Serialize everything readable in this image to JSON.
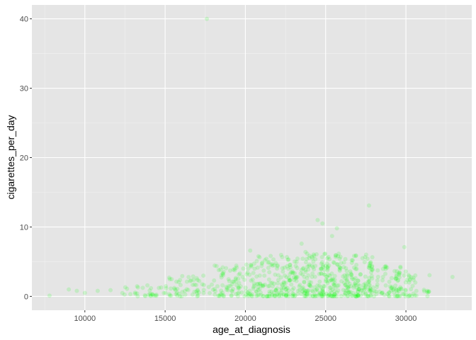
{
  "chart_data": {
    "type": "scatter",
    "xlabel": "age_at_diagnosis",
    "ylabel": "cigarettes_per_day",
    "xlim": [
      6700,
      34100
    ],
    "ylim": [
      -2,
      42
    ],
    "x_ticks": [
      10000,
      15000,
      20000,
      25000,
      30000
    ],
    "y_ticks": [
      0,
      10,
      20,
      30,
      40
    ],
    "grid": true,
    "point_color": "#00ff00",
    "point_alpha": 0.15,
    "panel_background": "#e5e5e5",
    "notable_points": [
      {
        "x": 17600,
        "y": 40
      },
      {
        "x": 27700,
        "y": 13.1
      },
      {
        "x": 24500,
        "y": 11
      },
      {
        "x": 24800,
        "y": 10.5
      },
      {
        "x": 25700,
        "y": 9.8
      },
      {
        "x": 25400,
        "y": 8.7
      },
      {
        "x": 23500,
        "y": 7.6
      },
      {
        "x": 29900,
        "y": 7.1
      },
      {
        "x": 20300,
        "y": 6.6
      },
      {
        "x": 32900,
        "y": 2.8
      },
      {
        "x": 7800,
        "y": 0.1
      },
      {
        "x": 9000,
        "y": 1.0
      },
      {
        "x": 9500,
        "y": 0.8
      },
      {
        "x": 10000,
        "y": 0.5
      },
      {
        "x": 10800,
        "y": 0.8
      },
      {
        "x": 11600,
        "y": 0.9
      }
    ],
    "clusters": [
      {
        "x_range": [
          12000,
          15000
        ],
        "y_range": [
          0,
          1.6
        ],
        "count": 30
      },
      {
        "x_range": [
          15000,
          18000
        ],
        "y_range": [
          0,
          3.0
        ],
        "count": 60
      },
      {
        "x_range": [
          18000,
          20000
        ],
        "y_range": [
          0,
          4.5
        ],
        "count": 70
      },
      {
        "x_range": [
          20000,
          22500
        ],
        "y_range": [
          0,
          6.0
        ],
        "count": 130
      },
      {
        "x_range": [
          22500,
          25000
        ],
        "y_range": [
          0,
          6.5
        ],
        "count": 170
      },
      {
        "x_range": [
          25000,
          28000
        ],
        "y_range": [
          0,
          6.2
        ],
        "count": 210
      },
      {
        "x_range": [
          28000,
          30000
        ],
        "y_range": [
          0,
          5.0
        ],
        "count": 80
      },
      {
        "x_range": [
          30000,
          31500
        ],
        "y_range": [
          0,
          3.8
        ],
        "count": 30
      }
    ]
  }
}
